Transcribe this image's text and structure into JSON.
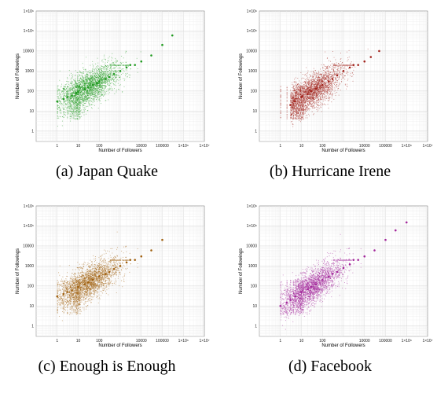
{
  "figure": {
    "panels": [
      {
        "caption": "(a) Japan Quake"
      },
      {
        "caption": "(b) Hurricane Irene"
      },
      {
        "caption": "(c) Enough is Enough"
      },
      {
        "caption": "(d) Facebook"
      }
    ]
  },
  "chart_data": [
    {
      "type": "scatter",
      "title": "(a) Japan Quake",
      "xlabel": "Number of Followers",
      "ylabel": "Number of Followings",
      "xscale": "log",
      "yscale": "log",
      "xlim": [
        0.1,
        10000000
      ],
      "ylim": [
        0.3,
        1000000
      ],
      "x_ticks": [
        "1",
        "10",
        "100",
        "10000",
        "100000",
        "1×10⁶",
        "1×10⁷"
      ],
      "y_ticks": [
        "1",
        "10",
        "100",
        "1000",
        "10000",
        "1×10⁵",
        "1×10⁶"
      ],
      "grid": true,
      "color": "#1f9a1f",
      "x": [
        1,
        2,
        3,
        5,
        8,
        10,
        20,
        30,
        50,
        80,
        100,
        200,
        300,
        500,
        1000,
        2000,
        3000,
        5000,
        10000,
        30000,
        100000,
        300000
      ],
      "y": [
        30,
        40,
        50,
        60,
        80,
        90,
        120,
        150,
        200,
        250,
        300,
        400,
        500,
        700,
        1000,
        1500,
        2000,
        2000,
        3000,
        6000,
        20000,
        60000
      ]
    },
    {
      "type": "scatter",
      "title": "(b) Hurricane Irene",
      "xlabel": "Number of Followers",
      "ylabel": "Number of Followings",
      "xscale": "log",
      "yscale": "log",
      "xlim": [
        0.1,
        10000000
      ],
      "ylim": [
        0.3,
        1000000
      ],
      "x_ticks": [
        "1",
        "10",
        "100",
        "10000",
        "100000",
        "1×10⁶",
        "1×10⁷"
      ],
      "y_ticks": [
        "1",
        "10",
        "100",
        "1000",
        "10000",
        "1×10⁵",
        "1×10⁶"
      ],
      "grid": true,
      "color": "#a1221b",
      "x": [
        3,
        5,
        10,
        20,
        30,
        50,
        100,
        200,
        300,
        500,
        1000,
        2000,
        3000,
        5000,
        10000,
        20000,
        50000
      ],
      "y": [
        20,
        30,
        50,
        70,
        100,
        130,
        200,
        300,
        400,
        600,
        1000,
        1500,
        2000,
        2000,
        3000,
        5000,
        10000
      ]
    },
    {
      "type": "scatter",
      "title": "(c) Enough is Enough",
      "xlabel": "Number of Followers",
      "ylabel": "Number of Followings",
      "xscale": "log",
      "yscale": "log",
      "xlim": [
        0.1,
        10000000
      ],
      "ylim": [
        0.3,
        1000000
      ],
      "x_ticks": [
        "1",
        "10",
        "100",
        "10000",
        "100000",
        "1×10⁶",
        "1×10⁷"
      ],
      "y_ticks": [
        "1",
        "10",
        "100",
        "1000",
        "10000",
        "1×10⁵",
        "1×10⁶"
      ],
      "grid": true,
      "color": "#a0600f",
      "x": [
        1,
        2,
        3,
        5,
        10,
        20,
        30,
        50,
        100,
        200,
        300,
        500,
        1000,
        2000,
        3000,
        5000,
        10000,
        30000,
        100000
      ],
      "y": [
        30,
        40,
        50,
        60,
        90,
        120,
        150,
        200,
        300,
        400,
        500,
        700,
        1000,
        1500,
        2000,
        2000,
        3000,
        6000,
        20000
      ]
    },
    {
      "type": "scatter",
      "title": "(d) Facebook",
      "xlabel": "Number of Followers",
      "ylabel": "Number of Followings",
      "xscale": "log",
      "yscale": "log",
      "xlim": [
        0.1,
        10000000
      ],
      "ylim": [
        0.3,
        1000000
      ],
      "x_ticks": [
        "1",
        "10",
        "100",
        "10000",
        "100000",
        "1×10⁶",
        "1×10⁷"
      ],
      "y_ticks": [
        "1",
        "10",
        "100",
        "1000",
        "10000",
        "1×10⁵",
        "1×10⁶"
      ],
      "grid": true,
      "color": "#a3279b",
      "x": [
        1,
        2,
        3,
        5,
        10,
        20,
        30,
        50,
        100,
        200,
        300,
        500,
        1000,
        2000,
        3000,
        5000,
        10000,
        30000,
        100000,
        300000,
        1000000
      ],
      "y": [
        10,
        15,
        20,
        30,
        50,
        70,
        90,
        120,
        200,
        300,
        400,
        500,
        800,
        1200,
        2000,
        2000,
        3000,
        6000,
        20000,
        60000,
        150000
      ]
    }
  ]
}
